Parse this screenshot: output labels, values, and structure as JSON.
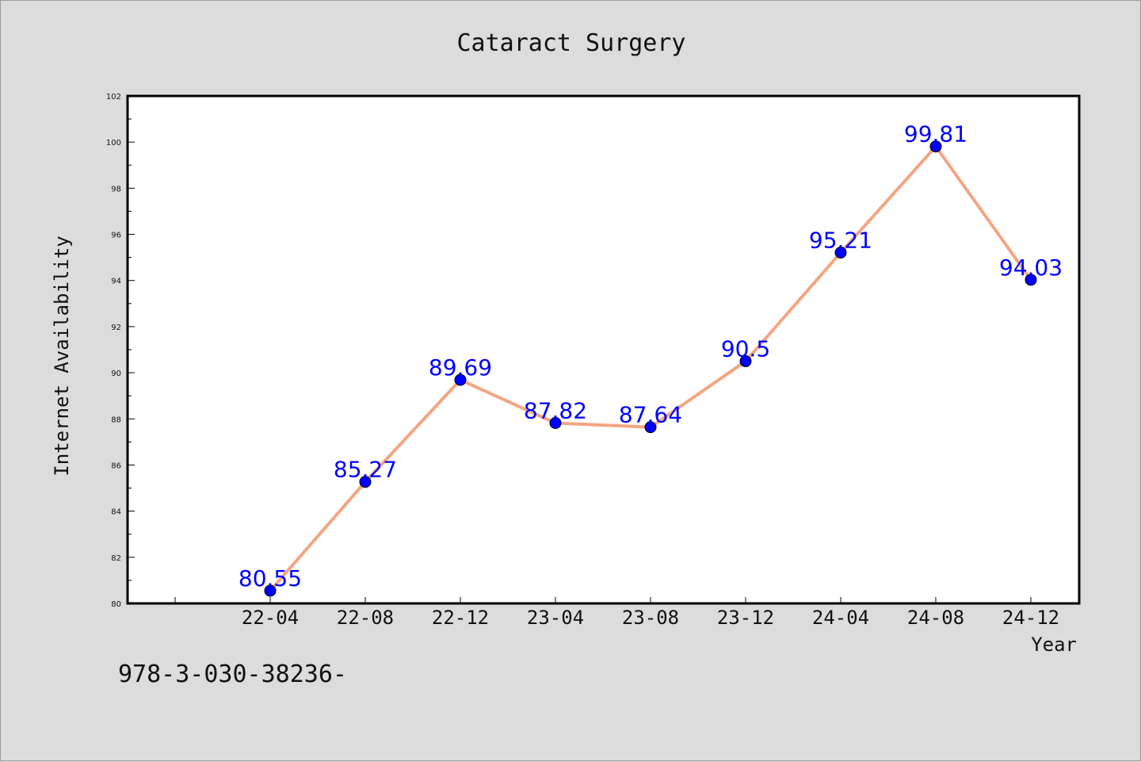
{
  "chart_data": {
    "type": "line",
    "title": "Cataract Surgery",
    "xlabel": "Year",
    "ylabel": "Internet Availability",
    "categories": [
      "22-04",
      "22-08",
      "22-12",
      "23-04",
      "23-08",
      "23-12",
      "24-04",
      "24-08",
      "24-12"
    ],
    "series": [
      {
        "values": [
          80.55,
          85.27,
          89.69,
          87.82,
          87.64,
          90.5,
          95.21,
          99.81,
          94.03
        ]
      }
    ],
    "data_labels": [
      "80.55",
      "85.27",
      "89.69",
      "87.82",
      "87.64",
      "90.5",
      "95.21",
      "99.81",
      "94.03"
    ],
    "ylim": [
      80,
      102
    ],
    "yticks": [
      "80",
      "82",
      "84",
      "86",
      "88",
      "90",
      "92",
      "94",
      "96",
      "98",
      "100",
      "102"
    ],
    "grid": false,
    "legend": "none",
    "colors": {
      "line": "#f4a582",
      "marker": "#0000ff",
      "data_label": "#0000ff",
      "background": "#dcdcdc",
      "plot_area": "#ffffff"
    }
  },
  "footnote": "978-3-030-38236-"
}
